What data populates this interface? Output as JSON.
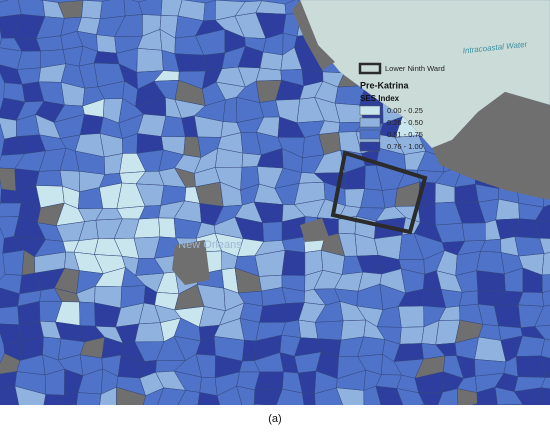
{
  "map": {
    "water_label": "Intracoastal Water",
    "place_label": "New Orleans",
    "boundary_legend": "Lower Ninth Ward",
    "legend": {
      "title": "Pre-Katrina",
      "subtitle": "SES Index",
      "items": [
        {
          "label": "0.00 - 0.25",
          "color": "#c9e6ee"
        },
        {
          "label": "0.26 - 0.50",
          "color": "#8fb2de"
        },
        {
          "label": "0.51 - 0.75",
          "color": "#4f73c9"
        },
        {
          "label": "0.76 - 1.00",
          "color": "#2d3e9e"
        }
      ]
    }
  },
  "caption": "(a)"
}
